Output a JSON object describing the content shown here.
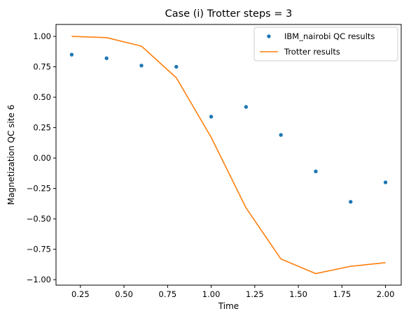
{
  "chart_data": {
    "type": "line",
    "title": "Case (i) Trotter steps = 3",
    "xlabel": "Time",
    "ylabel": "Magnetization QC site 6",
    "xlim": [
      0.11,
      2.09
    ],
    "ylim": [
      -1.045,
      1.098
    ],
    "x_ticks": [
      0.25,
      0.5,
      0.75,
      1.0,
      1.25,
      1.5,
      1.75,
      2.0
    ],
    "x_tick_labels": [
      "0.25",
      "0.50",
      "0.75",
      "1.00",
      "1.25",
      "1.50",
      "1.75",
      "2.00"
    ],
    "y_ticks": [
      1.0,
      0.75,
      0.5,
      0.25,
      0.0,
      -0.25,
      -0.5,
      -0.75,
      -1.0
    ],
    "y_tick_labels": [
      "1.00",
      "0.75",
      "0.50",
      "0.25",
      "0.00",
      "−0.25",
      "−0.50",
      "−0.75",
      "−1.00"
    ],
    "grid": false,
    "legend_position": "top-right",
    "x": [
      0.2,
      0.4,
      0.6,
      0.8,
      1.0,
      1.2,
      1.4,
      1.6,
      1.8,
      2.0
    ],
    "series": [
      {
        "name": "IBM_nairobi QC results",
        "style": "scatter",
        "color": "#1f77b4",
        "values": [
          0.85,
          0.82,
          0.76,
          0.75,
          0.34,
          0.42,
          0.19,
          -0.11,
          -0.36,
          -0.2
        ]
      },
      {
        "name": "Trotter results",
        "style": "line",
        "color": "#ff7f0e",
        "values": [
          1.0,
          0.99,
          0.92,
          0.66,
          0.17,
          -0.41,
          -0.83,
          -0.95,
          -0.89,
          -0.86
        ]
      }
    ]
  }
}
